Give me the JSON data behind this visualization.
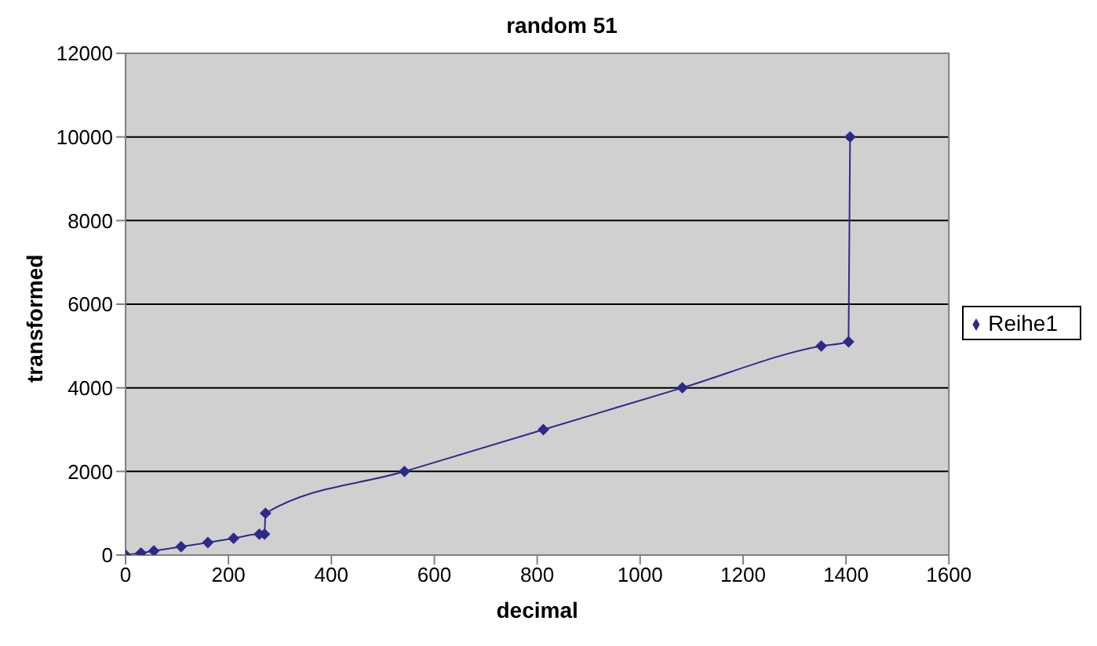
{
  "chart_data": {
    "type": "line",
    "title": "random 51",
    "xlabel": "decimal",
    "ylabel": "transformed",
    "x": [
      0,
      30,
      55,
      108,
      160,
      210,
      260,
      270,
      272,
      542,
      812,
      1082,
      1352,
      1405,
      1408
    ],
    "series": [
      {
        "name": "Reihe1",
        "color": "#2e2a8c",
        "values": [
          0,
          50,
          100,
          200,
          300,
          400,
          500,
          500,
          1000,
          2000,
          3000,
          4000,
          5000,
          5100,
          10000
        ]
      }
    ],
    "xlim": [
      0,
      1600
    ],
    "xticks": [
      0,
      200,
      400,
      600,
      800,
      1000,
      1200,
      1400,
      1600
    ],
    "ylim": [
      0,
      12000
    ],
    "yticks": [
      0,
      2000,
      4000,
      6000,
      8000,
      10000,
      12000
    ],
    "grid": "y",
    "legend": "right",
    "marker": "diamond",
    "line_style": "solid"
  }
}
